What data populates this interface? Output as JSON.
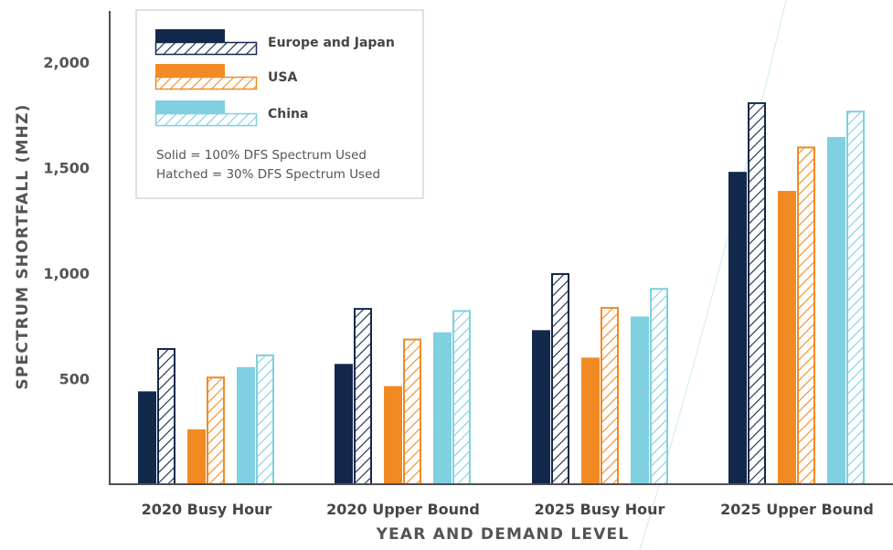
{
  "chart_data": {
    "type": "bar",
    "title": "",
    "xlabel": "YEAR AND DEMAND LEVEL",
    "ylabel": "SPECTRUM SHORTFALL (MHZ)",
    "ylim": [
      0,
      2100
    ],
    "yticks": [
      500,
      1000,
      1500,
      2000
    ],
    "ytick_labels": [
      "500",
      "1,000",
      "1,500",
      "2,000"
    ],
    "grid": false,
    "legend_position": "top-left",
    "categories": [
      "2020 Busy Hour",
      "2020 Upper Bound",
      "2025 Busy Hour",
      "2025 Upper Bound"
    ],
    "series": [
      {
        "name": "Europe and Japan",
        "variant": "solid",
        "color": "#13294b",
        "values": [
          440,
          570,
          730,
          1480
        ]
      },
      {
        "name": "Europe and Japan",
        "variant": "hatched",
        "color": "#13294b",
        "values": [
          645,
          835,
          1000,
          1810
        ]
      },
      {
        "name": "USA",
        "variant": "solid",
        "color": "#f28a24",
        "values": [
          260,
          465,
          600,
          1390
        ]
      },
      {
        "name": "USA",
        "variant": "hatched",
        "color": "#f28a24",
        "values": [
          510,
          690,
          840,
          1600
        ]
      },
      {
        "name": "China",
        "variant": "solid",
        "color": "#7fd0e0",
        "values": [
          555,
          720,
          795,
          1645
        ]
      },
      {
        "name": "China",
        "variant": "hatched",
        "color": "#7fd0e0",
        "values": [
          615,
          825,
          930,
          1770
        ]
      }
    ],
    "legend": {
      "entries": [
        {
          "label": "Europe and Japan",
          "color": "#13294b"
        },
        {
          "label": "USA",
          "color": "#f28a24"
        },
        {
          "label": "China",
          "color": "#7fd0e0"
        }
      ],
      "notes": [
        "Solid = 100% DFS Spectrum Used",
        "Hatched = 30% DFS Spectrum Used"
      ]
    }
  }
}
